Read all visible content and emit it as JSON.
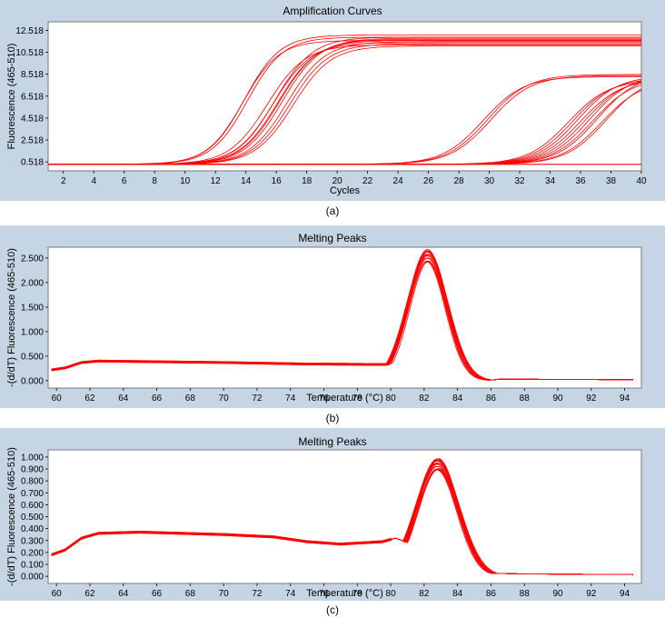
{
  "chart_data": [
    {
      "type": "line",
      "title": "Amplification Curves",
      "xlabel": "Cycles",
      "ylabel": "Fluorescence (465-510)",
      "caption": "(a)",
      "xlim": [
        1,
        40
      ],
      "ylim": [
        -0.3,
        13.3
      ],
      "xticks": [
        2,
        4,
        6,
        8,
        10,
        12,
        14,
        16,
        18,
        20,
        22,
        24,
        26,
        28,
        30,
        32,
        34,
        36,
        38,
        40
      ],
      "yticks": [
        0.518,
        2.518,
        4.518,
        6.518,
        8.518,
        10.518,
        12.518
      ],
      "yticklabels": [
        "0.518",
        "2.518",
        "4.518",
        "6.518",
        "8.518",
        "10.518",
        "12.518"
      ],
      "grid": false,
      "series_groups": [
        {
          "count": 3,
          "baseline": 0.3,
          "plateau": [
            11.6,
            11.9,
            12.1
          ],
          "midpoint": [
            13.8,
            14.1,
            13.9
          ],
          "slope": 0.85
        },
        {
          "count": 9,
          "baseline": 0.3,
          "plateau": [
            11.2,
            11.4,
            11.6,
            11.8,
            11.5,
            11.3,
            11.7,
            11.9,
            11.1
          ],
          "midpoint": [
            15.4,
            15.8,
            16.1,
            16.4,
            16.7,
            16.9,
            16.2,
            15.9,
            17.1
          ],
          "slope": 0.8
        },
        {
          "count": 3,
          "baseline": 0.3,
          "plateau": [
            8.3,
            8.5,
            8.4
          ],
          "midpoint": [
            29.6,
            29.9,
            30.1
          ],
          "slope": 0.75
        },
        {
          "count": 10,
          "baseline": 0.3,
          "plateau": [
            8.0,
            8.2,
            8.4,
            8.1,
            8.3,
            8.5,
            8.2,
            8.6,
            8.0,
            8.4
          ],
          "midpoint": [
            35.2,
            35.5,
            35.8,
            36.0,
            36.3,
            36.6,
            36.8,
            37.1,
            37.4,
            37.7
          ],
          "slope": 0.75
        },
        {
          "count": 2,
          "baseline": 0.3,
          "plateau": [
            0.3,
            0.34
          ],
          "midpoint": [
            60,
            60
          ],
          "slope": 0.5
        }
      ]
    },
    {
      "type": "line",
      "title": "Melting Peaks",
      "xlabel": "Temperature (°C)",
      "ylabel": "-(d/dT) Fluorescence (465-510)",
      "caption": "(b)",
      "xlim": [
        59.5,
        95
      ],
      "ylim": [
        -0.15,
        2.72
      ],
      "xticks": [
        60,
        62,
        64,
        66,
        68,
        70,
        72,
        74,
        76,
        78,
        80,
        82,
        84,
        86,
        88,
        90,
        92,
        94
      ],
      "yticks": [
        0.0,
        0.5,
        1.0,
        1.5,
        2.0,
        2.5
      ],
      "yticklabels": [
        "0.000",
        "0.500",
        "1.000",
        "1.500",
        "2.000",
        "2.500"
      ],
      "grid": false,
      "series_count": 16,
      "peak": {
        "temperature": 82.2,
        "height": 2.55,
        "width": 1.15
      },
      "baseline_points": [
        [
          59.7,
          0.22
        ],
        [
          60.5,
          0.26
        ],
        [
          61.5,
          0.37
        ],
        [
          62.5,
          0.4
        ],
        [
          65,
          0.39
        ],
        [
          70,
          0.37
        ],
        [
          75,
          0.34
        ],
        [
          79.5,
          0.33
        ],
        [
          80.2,
          0.34
        ],
        [
          84.0,
          0.05
        ],
        [
          84.7,
          -0.04
        ],
        [
          85.5,
          0.0
        ],
        [
          86.5,
          0.03
        ],
        [
          88,
          0.03
        ],
        [
          94.5,
          0.02
        ]
      ]
    },
    {
      "type": "line",
      "title": "Melting Peaks",
      "xlabel": "Temperature (°C)",
      "ylabel": "-(d/dT) Fluorescence (465-510)",
      "caption": "(c)",
      "xlim": [
        59.5,
        95
      ],
      "ylim": [
        -0.06,
        1.06
      ],
      "xticks": [
        60,
        62,
        64,
        66,
        68,
        70,
        72,
        74,
        76,
        78,
        80,
        82,
        84,
        86,
        88,
        90,
        92,
        94
      ],
      "yticks": [
        0.0,
        0.1,
        0.2,
        0.3,
        0.4,
        0.5,
        0.6,
        0.7,
        0.8,
        0.9,
        1.0
      ],
      "yticklabels": [
        "0.000",
        "0.100",
        "0.200",
        "0.300",
        "0.400",
        "0.500",
        "0.600",
        "0.700",
        "0.800",
        "0.900",
        "1.000"
      ],
      "grid": false,
      "series_count": 18,
      "peak": {
        "temperature": 82.8,
        "height": 0.94,
        "width": 1.25
      },
      "baseline_points": [
        [
          59.7,
          0.18
        ],
        [
          60.5,
          0.22
        ],
        [
          61.5,
          0.32
        ],
        [
          62.5,
          0.36
        ],
        [
          65,
          0.37
        ],
        [
          70,
          0.35
        ],
        [
          73,
          0.33
        ],
        [
          75,
          0.29
        ],
        [
          77,
          0.27
        ],
        [
          79.5,
          0.29
        ],
        [
          80.3,
          0.32
        ],
        [
          85.0,
          0.06
        ],
        [
          86.0,
          0.025
        ],
        [
          88,
          0.02
        ],
        [
          94.5,
          0.015
        ]
      ]
    }
  ]
}
